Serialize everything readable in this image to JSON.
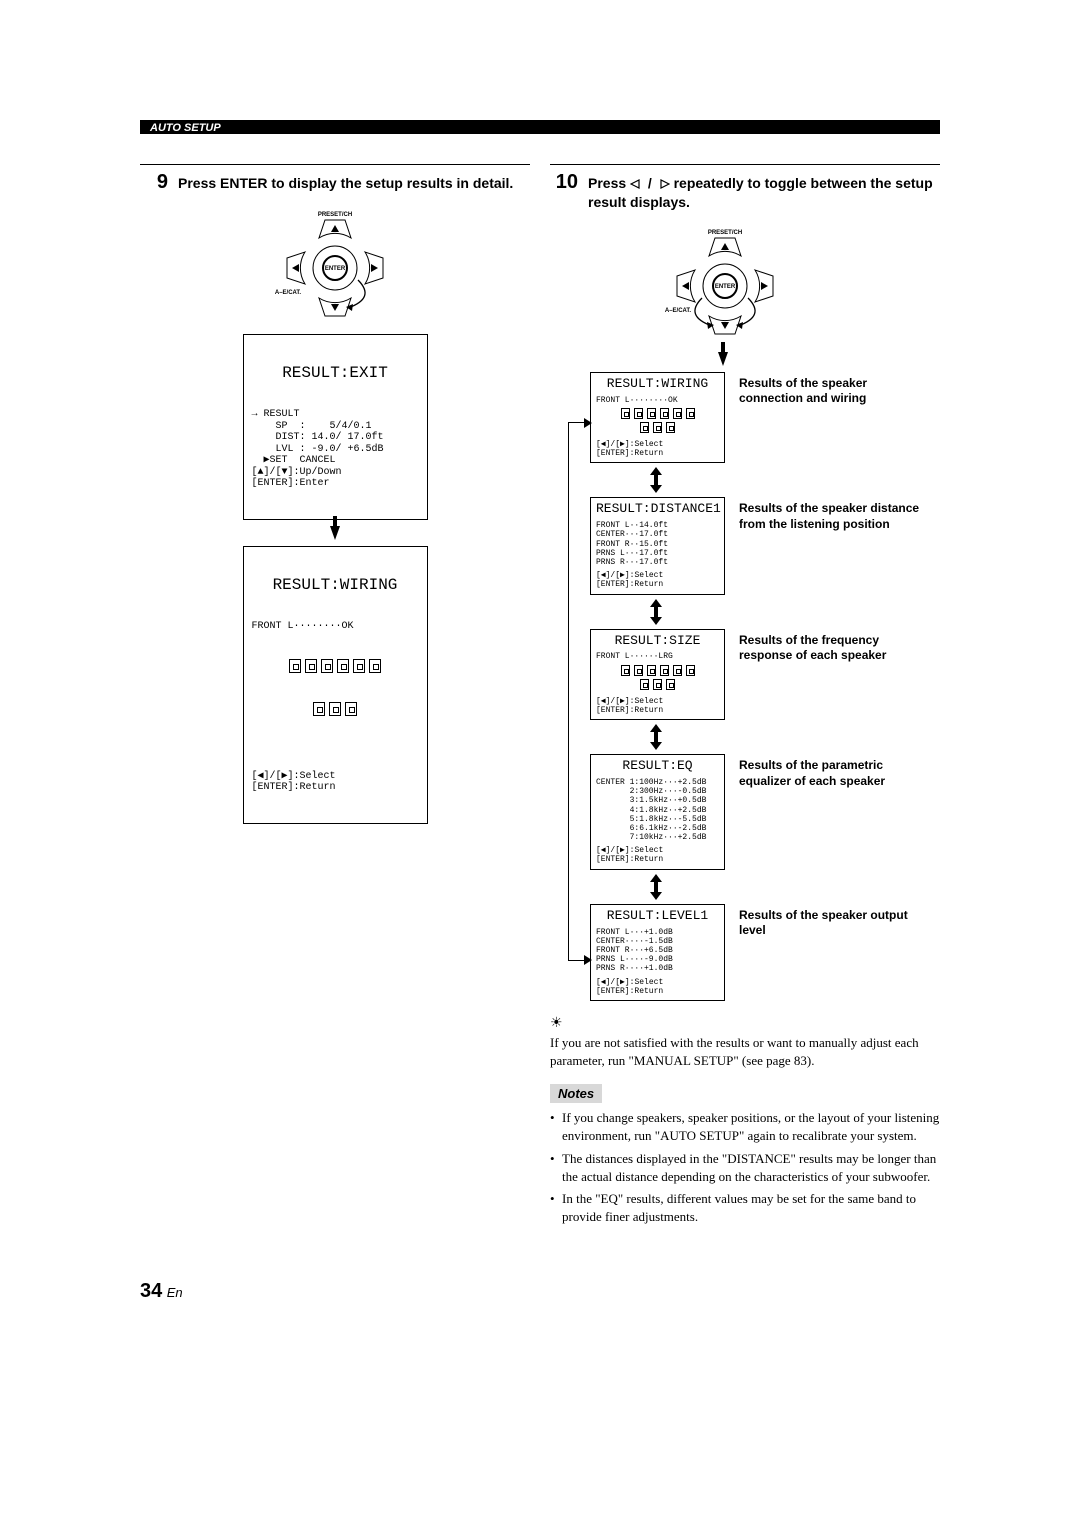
{
  "header": {
    "section_label": "AUTO SETUP"
  },
  "step9": {
    "num": "9",
    "text": "Press ENTER to display the setup results in detail.",
    "dpad": {
      "top_label": "PRESET/CH",
      "left_label": "A–E/CAT.",
      "center": "ENTER"
    },
    "osd_exit": {
      "title": "RESULT:EXIT",
      "lines": "→ RESULT\n    SP  :    5/4/0.1\n    DIST: 14.0/ 17.0ft\n    LVL : -9.0/ +6.5dB\n  ▶SET  CANCEL\n[▲]/[▼]:Up/Down\n[ENTER]:Enter"
    },
    "osd_wiring": {
      "title": "RESULT:WIRING",
      "status_line": "FRONT L········OK",
      "footer": "[◀]/[▶]:Select\n[ENTER]:Return"
    }
  },
  "step10": {
    "num": "10",
    "text_before": "Press ",
    "text_after": " repeatedly to toggle between the setup result displays.",
    "dpad": {
      "top_label": "PRESET/CH",
      "left_label": "A–E/CAT.",
      "center": "ENTER"
    },
    "results": [
      {
        "title": "RESULT:WIRING",
        "body": "FRONT L········OK",
        "footer": "[◀]/[▶]:Select\n[ENTER]:Return",
        "label": "Results of the speaker connection and wiring",
        "has_speakers": true
      },
      {
        "title": "RESULT:DISTANCE1",
        "body": "FRONT L··14.0ft\nCENTER···17.0ft\nFRONT R··15.0ft\nPRNS L···17.0ft\nPRNS R···17.0ft",
        "footer": "[◀]/[▶]:Select\n[ENTER]:Return",
        "label": "Results of the speaker distance from the listening position",
        "has_speakers": false
      },
      {
        "title": "RESULT:SIZE",
        "body": "FRONT L······LRG",
        "footer": "[◀]/[▶]:Select\n[ENTER]:Return",
        "label": "Results of the frequency response of each speaker",
        "has_speakers": true
      },
      {
        "title": "RESULT:EQ",
        "body": "CENTER 1:100Hz···+2.5dB\n       2:300Hz···-0.5dB\n       3:1.5kHz··+0.5dB\n       4:1.8kHz··+2.5dB\n       5:1.8kHz··-5.5dB\n       6:6.1kHz··-2.5dB\n       7:10kHz···+2.5dB",
        "footer": "[◀]/[▶]:Select\n[ENTER]:Return",
        "label": "Results of the parametric equalizer of each speaker",
        "has_speakers": false
      },
      {
        "title": "RESULT:LEVEL1",
        "body": "FRONT L···+1.0dB\nCENTER····-1.5dB\nFRONT R···+6.5dB\nPRNS L····-9.0dB\nPRNS R····+1.0dB",
        "footer": "[◀]/[▶]:Select\n[ENTER]:Return",
        "label": "Results of the speaker output level",
        "has_speakers": false
      }
    ],
    "tip": "If you are not satisfied with the results or want to manually adjust each parameter, run \"MANUAL SETUP\" (see page 83).",
    "notes_label": "Notes",
    "notes": [
      "If you change speakers, speaker positions, or the layout of your listening environment, run \"AUTO SETUP\" again to recalibrate your system.",
      "The distances displayed in the \"DISTANCE\" results may be longer than the actual distance depending on the characteristics of your subwoofer.",
      "In the \"EQ\" results, different values may be set for the same band to provide finer adjustments."
    ]
  },
  "footer": {
    "page_num": "34",
    "lang": "En"
  }
}
